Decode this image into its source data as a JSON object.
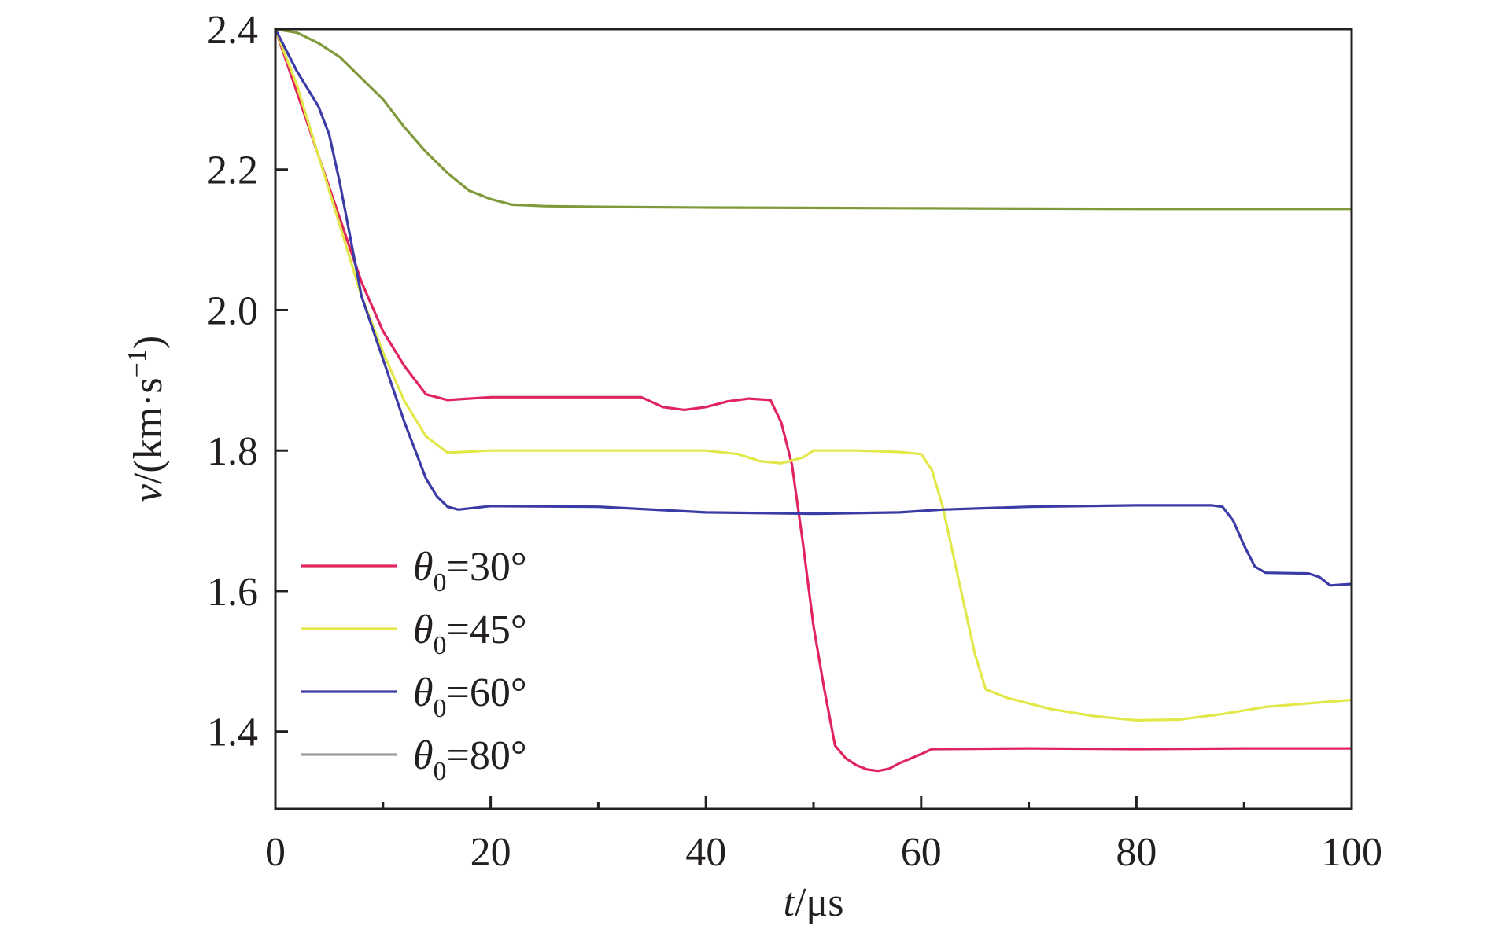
{
  "chart_data": {
    "type": "line",
    "xlabel": {
      "var": "t",
      "unit": "/μs"
    },
    "ylabel": {
      "var": "v",
      "unit": "/(km·s",
      "sup": "−1",
      "close": ")"
    },
    "xlim": [
      0,
      100
    ],
    "ylim": [
      1.29,
      2.4
    ],
    "xticks": [
      0,
      20,
      40,
      60,
      80,
      100
    ],
    "xtick_labels": [
      "0",
      "20",
      "40",
      "60",
      "80",
      "100"
    ],
    "xminor": [
      10,
      30,
      50,
      70,
      90
    ],
    "yticks": [
      1.4,
      1.6,
      1.8,
      2.0,
      2.2,
      2.4
    ],
    "ytick_labels": [
      "1.4",
      "1.6",
      "1.8",
      "2.0",
      "2.2",
      "2.4"
    ],
    "grid": false,
    "legend_position": "lower-left",
    "series": [
      {
        "name": "θ0=30°",
        "legend": {
          "var": "θ",
          "sub": "0",
          "text": "=30°"
        },
        "color": "#e0245e",
        "points": [
          [
            0,
            2.4
          ],
          [
            2,
            2.31
          ],
          [
            4,
            2.22
          ],
          [
            6,
            2.13
          ],
          [
            8,
            2.04
          ],
          [
            10,
            1.97
          ],
          [
            12,
            1.92
          ],
          [
            14,
            1.88
          ],
          [
            16,
            1.872
          ],
          [
            20,
            1.876
          ],
          [
            30,
            1.876
          ],
          [
            34,
            1.876
          ],
          [
            36,
            1.862
          ],
          [
            38,
            1.858
          ],
          [
            40,
            1.862
          ],
          [
            42,
            1.87
          ],
          [
            44,
            1.874
          ],
          [
            46,
            1.872
          ],
          [
            47,
            1.84
          ],
          [
            48,
            1.78
          ],
          [
            49,
            1.67
          ],
          [
            50,
            1.55
          ],
          [
            51,
            1.46
          ],
          [
            52,
            1.38
          ],
          [
            53,
            1.362
          ],
          [
            54,
            1.352
          ],
          [
            55,
            1.346
          ],
          [
            56,
            1.344
          ],
          [
            57,
            1.347
          ],
          [
            58,
            1.355
          ],
          [
            60,
            1.368
          ],
          [
            61,
            1.375
          ],
          [
            70,
            1.376
          ],
          [
            80,
            1.375
          ],
          [
            90,
            1.376
          ],
          [
            100,
            1.376
          ]
        ]
      },
      {
        "name": "θ0=45°",
        "legend": {
          "var": "θ",
          "sub": "0",
          "text": "=45°"
        },
        "color": "#e2e84a",
        "points": [
          [
            0,
            2.4
          ],
          [
            2,
            2.32
          ],
          [
            4,
            2.22
          ],
          [
            6,
            2.12
          ],
          [
            8,
            2.02
          ],
          [
            10,
            1.94
          ],
          [
            12,
            1.87
          ],
          [
            14,
            1.82
          ],
          [
            16,
            1.797
          ],
          [
            20,
            1.8
          ],
          [
            30,
            1.8
          ],
          [
            40,
            1.8
          ],
          [
            43,
            1.795
          ],
          [
            45,
            1.785
          ],
          [
            47,
            1.782
          ],
          [
            49,
            1.79
          ],
          [
            50,
            1.8
          ],
          [
            54,
            1.8
          ],
          [
            58,
            1.798
          ],
          [
            60,
            1.795
          ],
          [
            61,
            1.772
          ],
          [
            62,
            1.72
          ],
          [
            63,
            1.65
          ],
          [
            64,
            1.58
          ],
          [
            65,
            1.51
          ],
          [
            66,
            1.46
          ],
          [
            68,
            1.448
          ],
          [
            72,
            1.432
          ],
          [
            76,
            1.422
          ],
          [
            80,
            1.416
          ],
          [
            84,
            1.417
          ],
          [
            88,
            1.425
          ],
          [
            92,
            1.435
          ],
          [
            96,
            1.44
          ],
          [
            100,
            1.445
          ]
        ]
      },
      {
        "name": "θ0=60°",
        "legend": {
          "var": "θ",
          "sub": "0",
          "text": "=60°"
        },
        "color": "#3b3ba5",
        "points": [
          [
            0,
            2.4
          ],
          [
            2,
            2.34
          ],
          [
            4,
            2.29
          ],
          [
            5,
            2.25
          ],
          [
            6,
            2.18
          ],
          [
            7,
            2.1
          ],
          [
            8,
            2.02
          ],
          [
            10,
            1.93
          ],
          [
            12,
            1.84
          ],
          [
            14,
            1.76
          ],
          [
            15,
            1.735
          ],
          [
            16,
            1.72
          ],
          [
            17,
            1.716
          ],
          [
            20,
            1.721
          ],
          [
            30,
            1.72
          ],
          [
            40,
            1.712
          ],
          [
            50,
            1.71
          ],
          [
            58,
            1.712
          ],
          [
            62,
            1.716
          ],
          [
            70,
            1.72
          ],
          [
            80,
            1.722
          ],
          [
            87,
            1.722
          ],
          [
            88,
            1.72
          ],
          [
            89,
            1.7
          ],
          [
            90,
            1.665
          ],
          [
            91,
            1.635
          ],
          [
            92,
            1.626
          ],
          [
            96,
            1.625
          ],
          [
            97,
            1.62
          ],
          [
            98,
            1.608
          ],
          [
            100,
            1.61
          ]
        ]
      },
      {
        "name": "θ0=80°",
        "legend": {
          "var": "θ",
          "sub": "0",
          "text": "=80°"
        },
        "color": "#7f9a3a",
        "legend_color": "#9c9c9c",
        "points": [
          [
            0,
            2.4
          ],
          [
            2,
            2.395
          ],
          [
            4,
            2.38
          ],
          [
            6,
            2.36
          ],
          [
            8,
            2.33
          ],
          [
            10,
            2.3
          ],
          [
            12,
            2.26
          ],
          [
            14,
            2.225
          ],
          [
            16,
            2.195
          ],
          [
            18,
            2.17
          ],
          [
            20,
            2.158
          ],
          [
            22,
            2.15
          ],
          [
            25,
            2.148
          ],
          [
            30,
            2.147
          ],
          [
            40,
            2.146
          ],
          [
            60,
            2.145
          ],
          [
            80,
            2.144
          ],
          [
            100,
            2.144
          ]
        ]
      }
    ]
  }
}
